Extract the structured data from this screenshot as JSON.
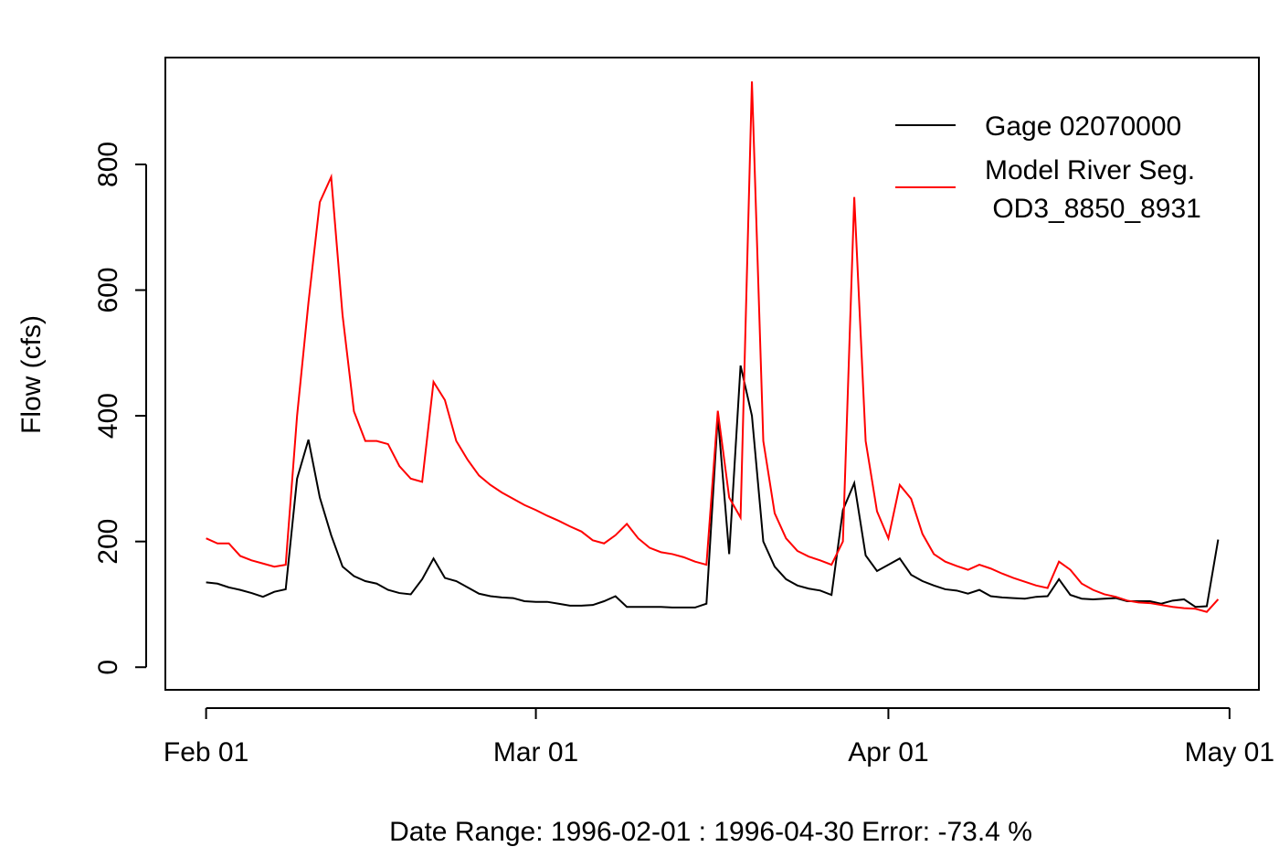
{
  "chart_data": {
    "type": "line",
    "xlabel": "Date Range: 1996-02-01 : 1996-04-30   Error: -73.4 %",
    "ylabel": "Flow (cfs)",
    "x": [
      "1996-02-01",
      "1996-02-02",
      "1996-02-03",
      "1996-02-04",
      "1996-02-05",
      "1996-02-06",
      "1996-02-07",
      "1996-02-08",
      "1996-02-09",
      "1996-02-10",
      "1996-02-11",
      "1996-02-12",
      "1996-02-13",
      "1996-02-14",
      "1996-02-15",
      "1996-02-16",
      "1996-02-17",
      "1996-02-18",
      "1996-02-19",
      "1996-02-20",
      "1996-02-21",
      "1996-02-22",
      "1996-02-23",
      "1996-02-24",
      "1996-02-25",
      "1996-02-26",
      "1996-02-27",
      "1996-02-28",
      "1996-02-29",
      "1996-03-01",
      "1996-03-02",
      "1996-03-03",
      "1996-03-04",
      "1996-03-05",
      "1996-03-06",
      "1996-03-07",
      "1996-03-08",
      "1996-03-09",
      "1996-03-10",
      "1996-03-11",
      "1996-03-12",
      "1996-03-13",
      "1996-03-14",
      "1996-03-15",
      "1996-03-16",
      "1996-03-17",
      "1996-03-18",
      "1996-03-19",
      "1996-03-20",
      "1996-03-21",
      "1996-03-22",
      "1996-03-23",
      "1996-03-24",
      "1996-03-25",
      "1996-03-26",
      "1996-03-27",
      "1996-03-28",
      "1996-03-29",
      "1996-03-30",
      "1996-03-31",
      "1996-04-01",
      "1996-04-02",
      "1996-04-03",
      "1996-04-04",
      "1996-04-05",
      "1996-04-06",
      "1996-04-07",
      "1996-04-08",
      "1996-04-09",
      "1996-04-10",
      "1996-04-11",
      "1996-04-12",
      "1996-04-13",
      "1996-04-14",
      "1996-04-15",
      "1996-04-16",
      "1996-04-17",
      "1996-04-18",
      "1996-04-19",
      "1996-04-20",
      "1996-04-21",
      "1996-04-22",
      "1996-04-23",
      "1996-04-24",
      "1996-04-25",
      "1996-04-26",
      "1996-04-27",
      "1996-04-28",
      "1996-04-29",
      "1996-04-30"
    ],
    "series": [
      {
        "name": "Gage 02070000",
        "color": "#000000",
        "values": [
          135,
          133,
          127,
          123,
          118,
          112,
          120,
          124,
          300,
          362,
          270,
          210,
          160,
          145,
          137,
          133,
          123,
          118,
          116,
          140,
          173,
          142,
          137,
          127,
          117,
          113,
          111,
          110,
          105,
          104,
          104,
          101,
          98,
          98,
          99,
          105,
          113,
          96,
          96,
          96,
          96,
          95,
          95,
          95,
          101,
          400,
          180,
          480,
          400,
          200,
          160,
          140,
          130,
          125,
          122,
          115,
          250,
          293,
          178,
          153,
          163,
          173,
          147,
          137,
          130,
          124,
          122,
          117,
          123,
          113,
          111,
          110,
          109,
          112,
          113,
          140,
          115,
          109,
          108,
          109,
          110,
          105,
          105,
          105,
          101,
          106,
          108,
          96,
          97,
          203
        ]
      },
      {
        "name": "Model River Seg.\n OD3_8850_8931",
        "color": "#ff0000",
        "values": [
          205,
          197,
          197,
          177,
          170,
          165,
          160,
          163,
          400,
          580,
          740,
          780,
          560,
          407,
          360,
          360,
          355,
          320,
          300,
          295,
          454,
          425,
          360,
          330,
          305,
          290,
          278,
          268,
          258,
          250,
          241,
          233,
          224,
          216,
          202,
          197,
          210,
          228,
          205,
          190,
          183,
          180,
          175,
          168,
          163,
          408,
          270,
          238,
          932,
          360,
          245,
          205,
          185,
          176,
          170,
          163,
          200,
          748,
          360,
          248,
          205,
          290,
          268,
          212,
          180,
          168,
          161,
          155,
          163,
          157,
          149,
          142,
          136,
          130,
          126,
          168,
          155,
          133,
          123,
          116,
          112,
          106,
          103,
          102,
          99,
          96,
          94,
          93,
          88,
          108
        ]
      }
    ],
    "xlim": [
      "1996-01-28T10:00Z",
      "1996-05-03T14:00Z"
    ],
    "xticks": [
      {
        "value": "1996-02-01",
        "label": "Feb 01"
      },
      {
        "value": "1996-03-01",
        "label": "Mar 01"
      },
      {
        "value": "1996-04-01",
        "label": "Apr 01"
      },
      {
        "value": "1996-05-01",
        "label": "May 01"
      }
    ],
    "ylim": [
      -36,
      970
    ],
    "yticks": [
      0,
      200,
      400,
      600,
      800
    ],
    "legend": "top-right"
  }
}
